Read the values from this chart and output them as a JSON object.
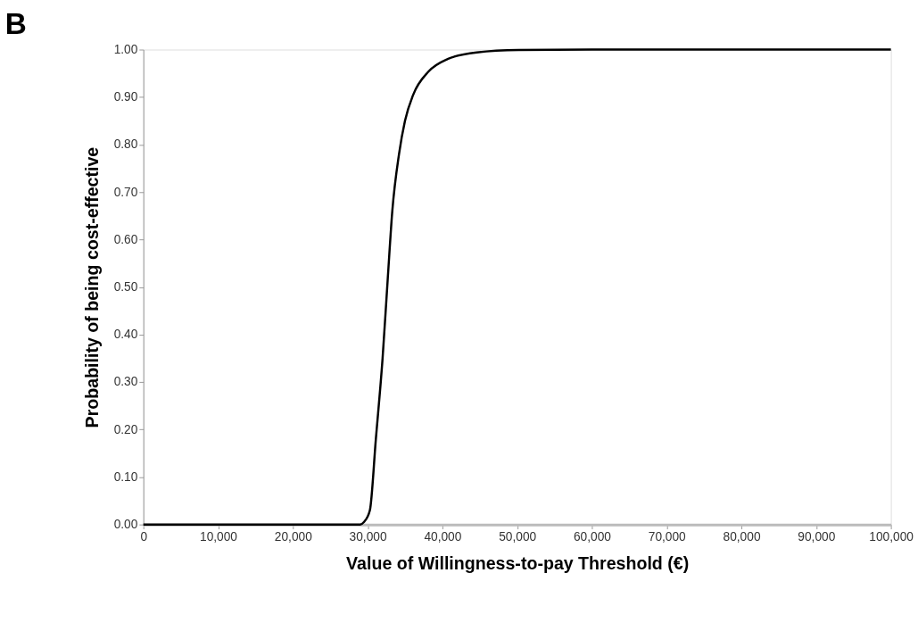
{
  "chart_data": {
    "type": "line",
    "title": "B",
    "xlabel": "Value of Willingness-to-pay Threshold (€)",
    "ylabel": "Probability of being cost-effective",
    "series": [
      {
        "color": "#000000",
        "x": [
          0,
          10000,
          20000,
          29000,
          29500,
          30300,
          31100,
          32000,
          32700,
          33300,
          34200,
          35000,
          36100,
          38100,
          40700,
          44600,
          50200,
          60000,
          80000,
          100000
        ],
        "values": [
          0,
          0,
          0,
          0,
          0.005,
          0.03,
          0.18,
          0.35,
          0.52,
          0.66,
          0.78,
          0.85,
          0.905,
          0.953,
          0.98,
          0.994,
          0.999,
          1.0,
          1.0,
          1.0
        ]
      }
    ],
    "xlim": [
      0,
      100000
    ],
    "xticks": [
      {
        "value": 0,
        "label": "0"
      },
      {
        "value": 10000,
        "label": "10,000"
      },
      {
        "value": 20000,
        "label": "20,000"
      },
      {
        "value": 30000,
        "label": "30,000"
      },
      {
        "value": 40000,
        "label": "40,000"
      },
      {
        "value": 50000,
        "label": "50,000"
      },
      {
        "value": 60000,
        "label": "60,000"
      },
      {
        "value": 70000,
        "label": "70,000"
      },
      {
        "value": 80000,
        "label": "80,000"
      },
      {
        "value": 90000,
        "label": "90,000"
      },
      {
        "value": 100000,
        "label": "100,000"
      }
    ],
    "ylim": [
      0,
      1
    ],
    "yticks": [
      {
        "value": 0,
        "label": "0.00"
      },
      {
        "value": 0.1,
        "label": "0.10"
      },
      {
        "value": 0.2,
        "label": "0.20"
      },
      {
        "value": 0.3,
        "label": "0.30"
      },
      {
        "value": 0.4,
        "label": "0.40"
      },
      {
        "value": 0.5,
        "label": "0.50"
      },
      {
        "value": 0.6,
        "label": "0.60"
      },
      {
        "value": 0.7,
        "label": "0.70"
      },
      {
        "value": 0.8,
        "label": "0.80"
      },
      {
        "value": 0.9,
        "label": "0.90"
      },
      {
        "value": 1.0,
        "label": "1.00"
      }
    ],
    "grid": false,
    "legend": false,
    "marker": "none",
    "line_style": "solid"
  }
}
